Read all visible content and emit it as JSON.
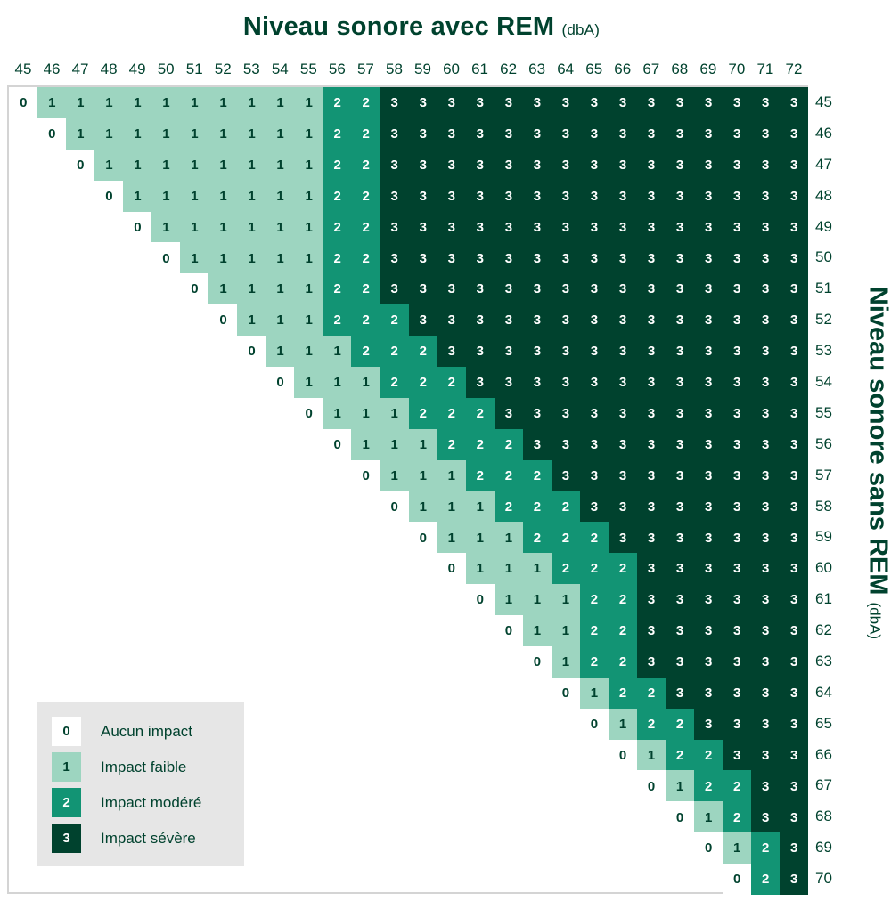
{
  "title_top": {
    "main": "Niveau sonore avec REM",
    "unit": "(dbA)"
  },
  "title_right": {
    "main": "Niveau sonore sans REM",
    "unit": "(dbA)"
  },
  "colors": {
    "0": "#ffffff",
    "1": "#9dd5c0",
    "2": "#129474",
    "3": "#00422e",
    "text": "#00422e"
  },
  "legend": [
    {
      "value": "0",
      "label": "Aucun impact"
    },
    {
      "value": "1",
      "label": "Impact faible"
    },
    {
      "value": "2",
      "label": "Impact modéré"
    },
    {
      "value": "3",
      "label": "Impact sévère"
    }
  ],
  "chart_data": {
    "type": "heatmap",
    "title": "Niveau sonore avec REM (dbA) vs Niveau sonore sans REM (dbA)",
    "xlabel": "Niveau sonore avec REM (dbA)",
    "ylabel": "Niveau sonore sans REM (dbA)",
    "x": [
      45,
      46,
      47,
      48,
      49,
      50,
      51,
      52,
      53,
      54,
      55,
      56,
      57,
      58,
      59,
      60,
      61,
      62,
      63,
      64,
      65,
      66,
      67,
      68,
      69,
      70,
      71,
      72
    ],
    "y": [
      45,
      46,
      47,
      48,
      49,
      50,
      51,
      52,
      53,
      54,
      55,
      56,
      57,
      58,
      59,
      60,
      61,
      62,
      63,
      64,
      65,
      66,
      67,
      68,
      69,
      70
    ],
    "note": "Each row lists values starting at the column equal to the row level (upper-triangular); cells left of that are empty.",
    "rows": [
      {
        "y": 45,
        "start": 45,
        "values": [
          0,
          1,
          1,
          1,
          1,
          1,
          1,
          1,
          1,
          1,
          1,
          2,
          2,
          3,
          3,
          3,
          3,
          3,
          3,
          3,
          3,
          3,
          3,
          3,
          3,
          3,
          3,
          3
        ]
      },
      {
        "y": 46,
        "start": 46,
        "values": [
          0,
          1,
          1,
          1,
          1,
          1,
          1,
          1,
          1,
          1,
          2,
          2,
          3,
          3,
          3,
          3,
          3,
          3,
          3,
          3,
          3,
          3,
          3,
          3,
          3,
          3,
          3
        ]
      },
      {
        "y": 47,
        "start": 47,
        "values": [
          0,
          1,
          1,
          1,
          1,
          1,
          1,
          1,
          1,
          2,
          2,
          3,
          3,
          3,
          3,
          3,
          3,
          3,
          3,
          3,
          3,
          3,
          3,
          3,
          3,
          3
        ]
      },
      {
        "y": 48,
        "start": 48,
        "values": [
          0,
          1,
          1,
          1,
          1,
          1,
          1,
          1,
          2,
          2,
          3,
          3,
          3,
          3,
          3,
          3,
          3,
          3,
          3,
          3,
          3,
          3,
          3,
          3,
          3
        ]
      },
      {
        "y": 49,
        "start": 49,
        "values": [
          0,
          1,
          1,
          1,
          1,
          1,
          1,
          2,
          2,
          3,
          3,
          3,
          3,
          3,
          3,
          3,
          3,
          3,
          3,
          3,
          3,
          3,
          3,
          3
        ]
      },
      {
        "y": 50,
        "start": 50,
        "values": [
          0,
          1,
          1,
          1,
          1,
          1,
          2,
          2,
          3,
          3,
          3,
          3,
          3,
          3,
          3,
          3,
          3,
          3,
          3,
          3,
          3,
          3,
          3
        ]
      },
      {
        "y": 51,
        "start": 51,
        "values": [
          0,
          1,
          1,
          1,
          1,
          2,
          2,
          3,
          3,
          3,
          3,
          3,
          3,
          3,
          3,
          3,
          3,
          3,
          3,
          3,
          3,
          3
        ]
      },
      {
        "y": 52,
        "start": 52,
        "values": [
          0,
          1,
          1,
          1,
          2,
          2,
          2,
          3,
          3,
          3,
          3,
          3,
          3,
          3,
          3,
          3,
          3,
          3,
          3,
          3,
          3
        ]
      },
      {
        "y": 53,
        "start": 53,
        "values": [
          0,
          1,
          1,
          1,
          2,
          2,
          2,
          3,
          3,
          3,
          3,
          3,
          3,
          3,
          3,
          3,
          3,
          3,
          3,
          3
        ]
      },
      {
        "y": 54,
        "start": 54,
        "values": [
          0,
          1,
          1,
          1,
          2,
          2,
          2,
          3,
          3,
          3,
          3,
          3,
          3,
          3,
          3,
          3,
          3,
          3,
          3
        ]
      },
      {
        "y": 55,
        "start": 55,
        "values": [
          0,
          1,
          1,
          1,
          2,
          2,
          2,
          3,
          3,
          3,
          3,
          3,
          3,
          3,
          3,
          3,
          3,
          3
        ]
      },
      {
        "y": 56,
        "start": 56,
        "values": [
          0,
          1,
          1,
          1,
          2,
          2,
          2,
          3,
          3,
          3,
          3,
          3,
          3,
          3,
          3,
          3,
          3
        ]
      },
      {
        "y": 57,
        "start": 57,
        "values": [
          0,
          1,
          1,
          1,
          2,
          2,
          2,
          3,
          3,
          3,
          3,
          3,
          3,
          3,
          3,
          3
        ]
      },
      {
        "y": 58,
        "start": 58,
        "values": [
          0,
          1,
          1,
          1,
          2,
          2,
          2,
          3,
          3,
          3,
          3,
          3,
          3,
          3,
          3
        ]
      },
      {
        "y": 59,
        "start": 59,
        "values": [
          0,
          1,
          1,
          1,
          2,
          2,
          2,
          3,
          3,
          3,
          3,
          3,
          3,
          3
        ]
      },
      {
        "y": 60,
        "start": 60,
        "values": [
          0,
          1,
          1,
          1,
          2,
          2,
          2,
          3,
          3,
          3,
          3,
          3,
          3
        ]
      },
      {
        "y": 61,
        "start": 61,
        "values": [
          0,
          1,
          1,
          1,
          2,
          2,
          3,
          3,
          3,
          3,
          3,
          3
        ]
      },
      {
        "y": 62,
        "start": 62,
        "values": [
          0,
          1,
          1,
          2,
          2,
          3,
          3,
          3,
          3,
          3,
          3
        ]
      },
      {
        "y": 63,
        "start": 63,
        "values": [
          0,
          1,
          2,
          2,
          3,
          3,
          3,
          3,
          3,
          3
        ]
      },
      {
        "y": 64,
        "start": 64,
        "values": [
          0,
          1,
          2,
          2,
          3,
          3,
          3,
          3,
          3
        ]
      },
      {
        "y": 65,
        "start": 65,
        "values": [
          0,
          1,
          2,
          2,
          3,
          3,
          3,
          3
        ]
      },
      {
        "y": 66,
        "start": 66,
        "values": [
          0,
          1,
          2,
          2,
          3,
          3,
          3
        ]
      },
      {
        "y": 67,
        "start": 67,
        "values": [
          0,
          1,
          2,
          2,
          3,
          3
        ]
      },
      {
        "y": 68,
        "start": 68,
        "values": [
          0,
          1,
          2,
          3,
          3
        ]
      },
      {
        "y": 69,
        "start": 69,
        "values": [
          0,
          1,
          2,
          3
        ]
      },
      {
        "y": 70,
        "start": 70,
        "values": [
          0,
          2,
          3
        ]
      }
    ],
    "legend": [
      "0 Aucun impact",
      "1 Impact faible",
      "2 Impact modéré",
      "3 Impact sévère"
    ],
    "legend_position": "bottom-left inside grid"
  }
}
